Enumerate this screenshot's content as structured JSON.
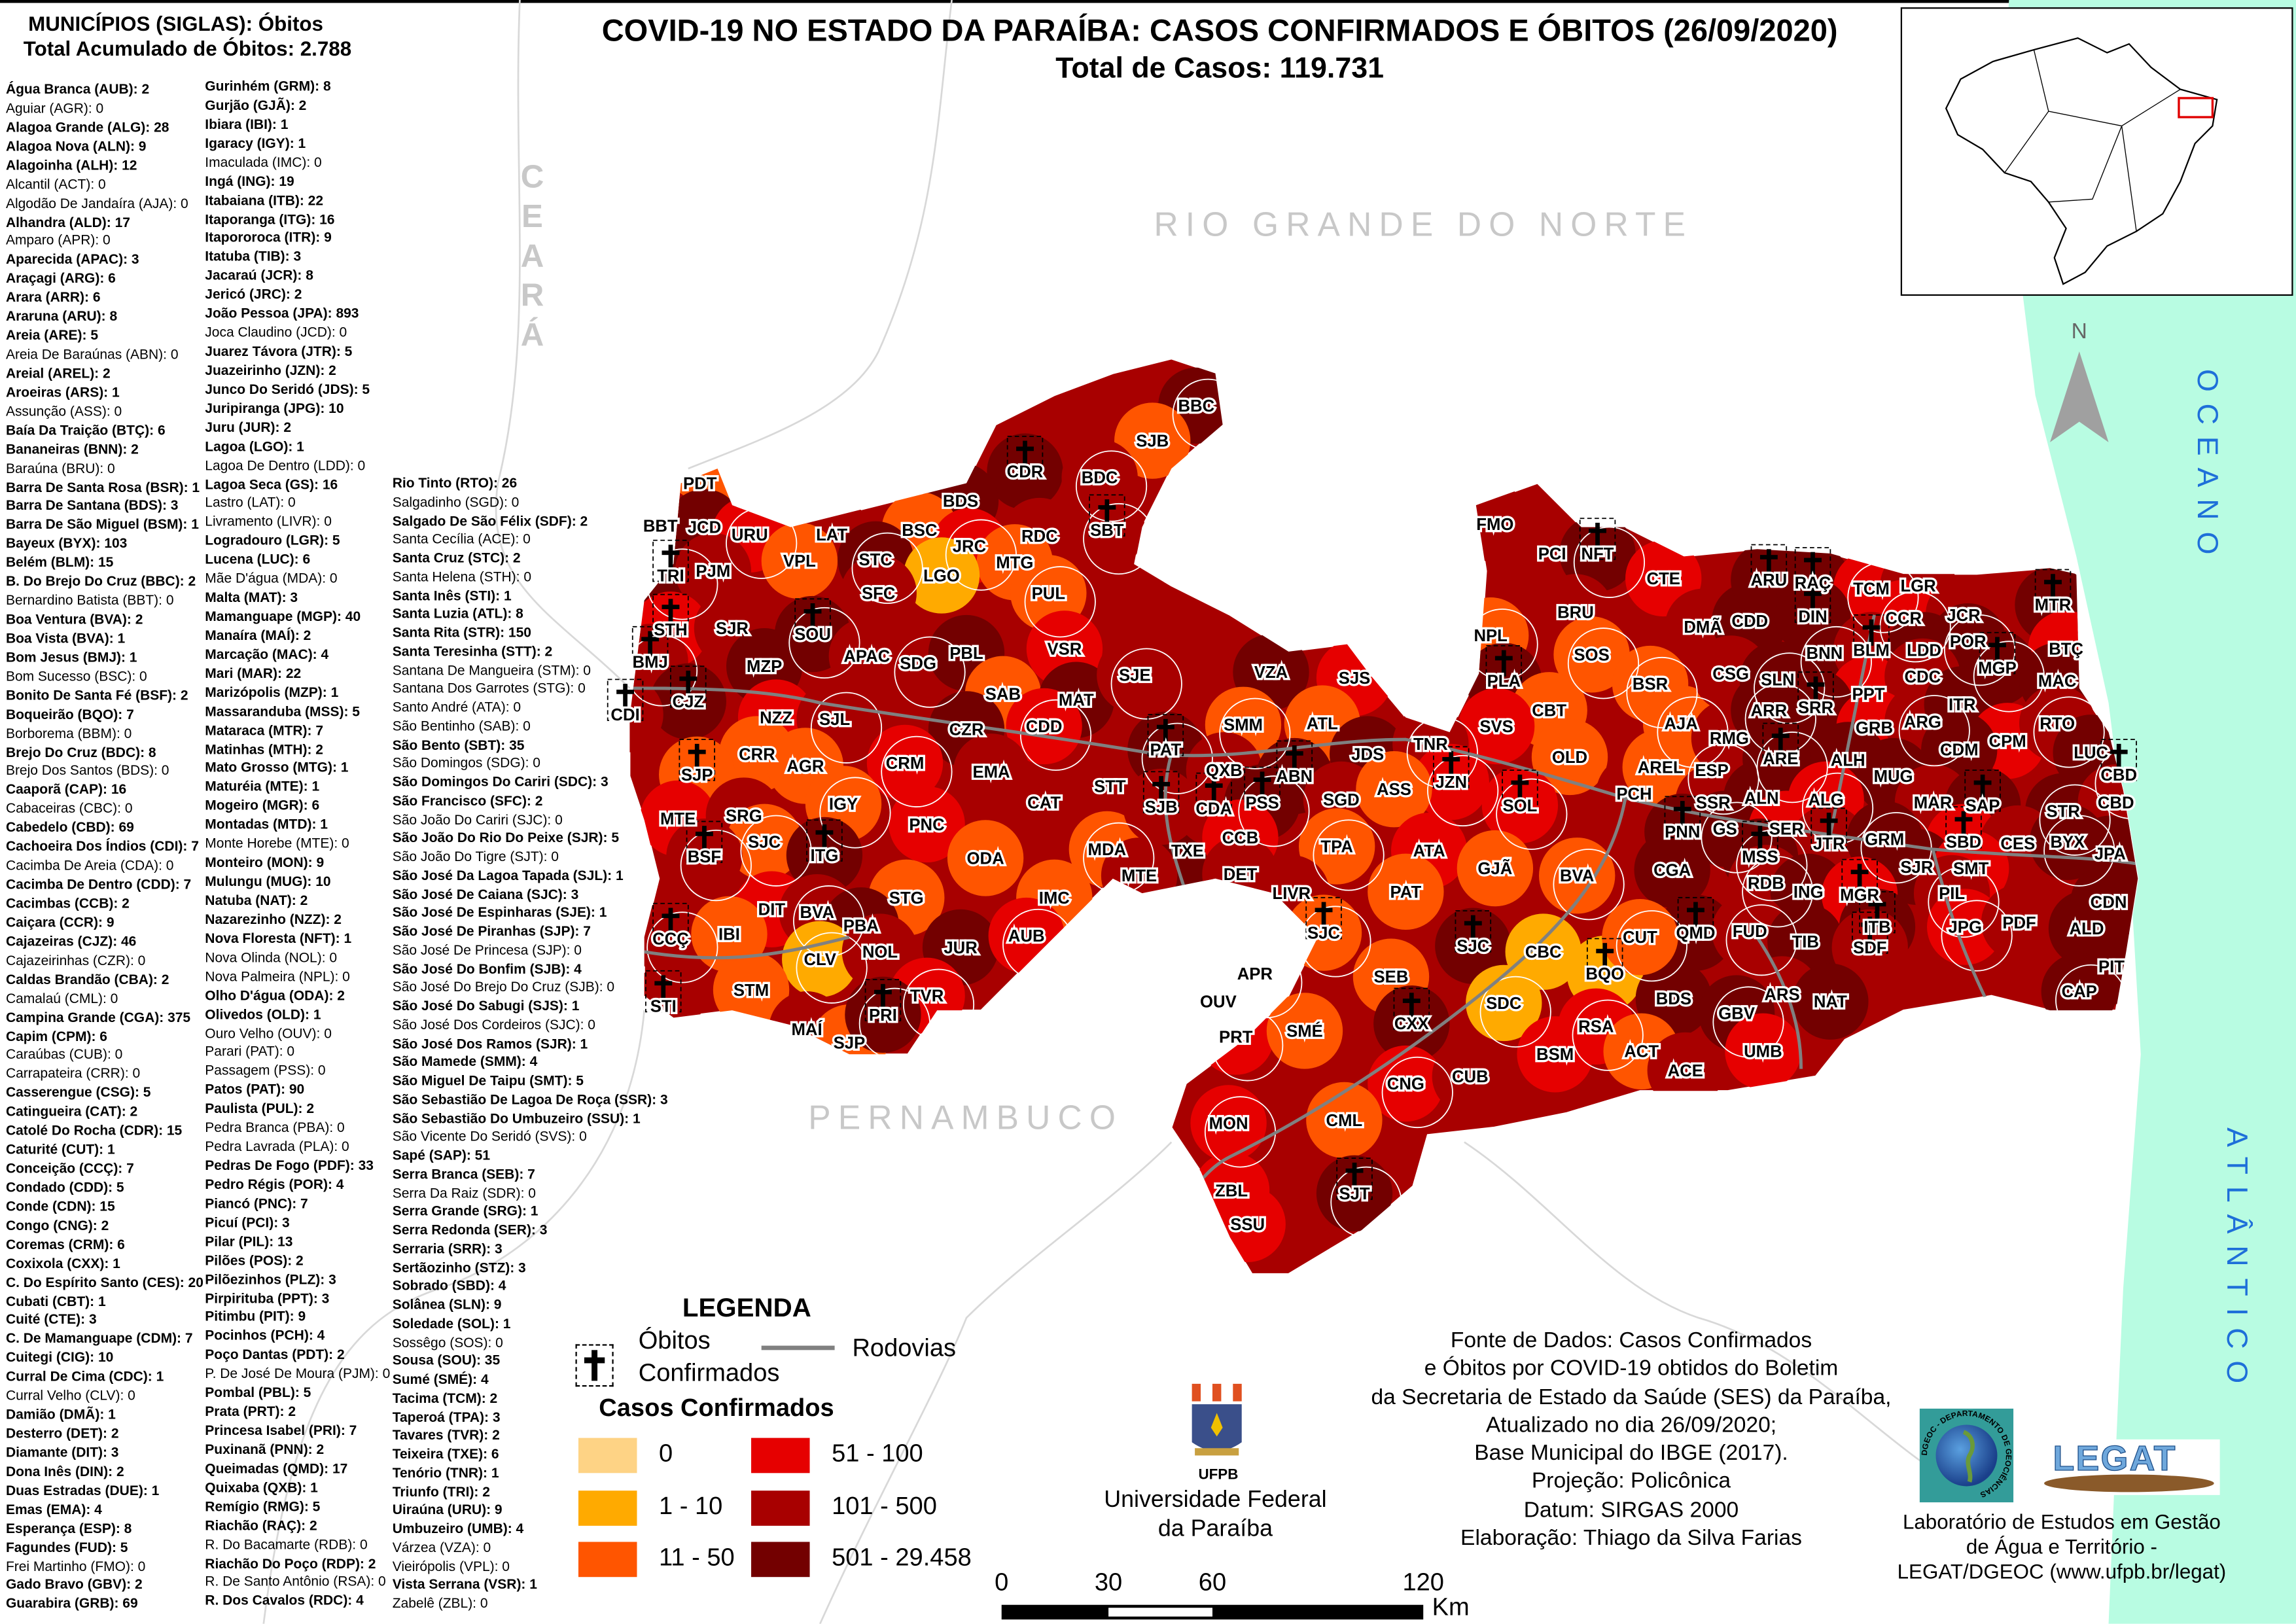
{
  "header": {
    "title": "COVID-19 NO ESTADO DA PARAÍBA: CASOS CONFIRMADOS E  ÓBITOS (26/09/2020)",
    "total_cases": "Total de Casos: 119.731",
    "list_title": "MUNICÍPIOS (SIGLAS): Óbitos",
    "list_total": "Total Acumulado de Óbitos: 2.788"
  },
  "municipalities": {
    "col1": [
      "Água Branca (AUB): 2",
      "Aguiar (AGR): 0",
      "Alagoa Grande (ALG): 28",
      "Alagoa Nova (ALN): 9",
      "Alagoinha (ALH): 12",
      "Alcantil (ACT): 0",
      "Algodão De Jandaíra (AJA): 0",
      "Alhandra (ALD): 17",
      "Amparo (APR): 0",
      "Aparecida (APAC): 3",
      "Araçagi (ARG): 6",
      "Arara (ARR): 6",
      "Araruna (ARU): 8",
      "Areia (ARE): 5",
      "Areia De Baraúnas (ABN): 0",
      "Areial (AREL): 2",
      "Aroeiras (ARS): 1",
      "Assunção (ASS): 0",
      "Baía Da Traição (BTÇ): 6",
      "Bananeiras (BNN): 2",
      "Baraúna (BRU): 0",
      "Barra De Santa Rosa (BSR): 1",
      "Barra De Santana (BDS): 3",
      "Barra De São Miguel (BSM): 1",
      "Bayeux (BYX): 103",
      "Belém (BLM): 15",
      "B. Do Brejo Do Cruz (BBC): 2",
      "Bernardino Batista (BBT): 0",
      "Boa Ventura (BVA): 2",
      "Boa Vista (BVA): 1",
      "Bom Jesus (BMJ): 1",
      "Bom Sucesso (BSC): 0",
      "Bonito De Santa Fé (BSF): 2",
      "Boqueirão (BQO): 7",
      "Borborema (BBM): 0",
      "Brejo Do Cruz (BDC): 8",
      "Brejo Dos Santos (BDS): 0",
      "Caaporã (CAP): 16",
      "Cabaceiras (CBC): 0",
      "Cabedelo (CBD): 69",
      "Cachoeira Dos Índios (CDI): 7",
      "Cacimba De Areia (CDA): 0",
      "Cacimba De Dentro (CDD): 7",
      "Cacimbas (CCB): 2",
      "Caiçara (CCR): 9",
      "Cajazeiras (CJZ): 46",
      "Cajazeirinhas (CZR): 0",
      "Caldas Brandão (CBA): 2",
      "Camalaú (CML): 0",
      "Campina Grande (CGA): 375",
      "Capim (CPM): 6",
      "Caraúbas (CUB): 0",
      "Carrapateira (CRR): 0",
      "Casserengue (CSG): 5",
      "Catingueira (CAT): 2",
      "Catolé Do Rocha (CDR): 15",
      "Caturité (CUT): 1",
      "Conceição (CCÇ): 7",
      "Condado (CDD): 5",
      "Conde (CDN): 15",
      "Congo (CNG): 2",
      "Coremas (CRM): 6",
      "Coxixola (CXX): 1",
      "C. Do Espírito Santo (CES): 20",
      "Cubati (CBT): 1",
      "Cuité (CTE): 3",
      "C. De Mamanguape (CDM): 7",
      "Cuitegi (CIG): 10",
      "Curral De Cima (CDC): 1",
      "Curral Velho (CLV): 0",
      "Damião (DMÃ): 1",
      "Desterro (DET): 2",
      "Diamante (DIT): 3",
      "Dona Inês (DIN): 2",
      "Duas Estradas (DUE): 1",
      "Emas (EMA): 4",
      "Esperança (ESP): 8",
      "Fagundes (FUD): 5",
      "Frei Martinho (FMO): 0",
      "Gado Bravo (GBV): 2",
      "Guarabira (GRB): 69"
    ],
    "col2": [
      "Gurinhém (GRM): 8",
      "Gurjão (GJÃ): 2",
      "Ibiara (IBI): 1",
      "Igaracy (IGY): 1",
      "Imaculada (IMC): 0",
      "Ingá (ING): 19",
      "Itabaiana (ITB): 22",
      "Itaporanga (ITG): 16",
      "Itapororoca (ITR): 9",
      "Itatuba (TIB): 3",
      "Jacaraú (JCR): 8",
      "Jericó (JRC): 2",
      "João Pessoa (JPA): 893",
      "Joca Claudino (JCD): 0",
      "Juarez Távora (JTR): 5",
      "Juazeirinho (JZN): 2",
      "Junco Do Seridó (JDS): 5",
      "Juripiranga (JPG): 10",
      "Juru (JUR): 2",
      "Lagoa (LGO): 1",
      "Lagoa De Dentro (LDD): 0",
      "Lagoa Seca (GS): 16",
      "Lastro (LAT): 0",
      "Livramento (LIVR): 0",
      "Logradouro (LGR): 5",
      "Lucena (LUC): 6",
      "Mãe D'água (MDA): 0",
      "Malta (MAT): 3",
      "Mamanguape (MGP): 40",
      "Manaíra (MAÍ): 2",
      "Marcação (MAC): 4",
      "Mari (MAR): 22",
      "Marizópolis (MZP): 1",
      "Massaranduba (MSS): 5",
      "Mataraca (MTR): 7",
      "Matinhas (MTH): 2",
      "Mato Grosso (MTG): 1",
      "Maturéia (MTE): 1",
      "Mogeiro (MGR): 6",
      "Montadas (MTD): 1",
      "Monte Horebe (MTE): 0",
      "Monteiro (MON): 9",
      "Mulungu (MUG): 10",
      "Natuba (NAT): 2",
      "Nazarezinho (NZZ): 2",
      "Nova Floresta (NFT): 1",
      "Nova Olinda (NOL): 0",
      "Nova Palmeira (NPL): 0",
      "Olho D'água (ODA): 2",
      "Olivedos (OLD): 1",
      "Ouro Velho (OUV): 0",
      "Parari (PAT): 0",
      "Passagem (PSS): 0",
      "Patos (PAT): 90",
      "Paulista (PUL): 2",
      "Pedra Branca (PBA): 0",
      "Pedra Lavrada (PLA): 0",
      "Pedras De Fogo (PDF): 33",
      "Pedro Régis (POR): 4",
      "Piancó (PNC): 7",
      "Picuí (PCI): 3",
      "Pilar (PIL): 13",
      "Pilões (POS): 2",
      "Pilõezinhos (PLZ): 3",
      "Pirpirituba (PPT): 3",
      "Pitimbu (PIT): 9",
      "Pocinhos (PCH): 4",
      "Poço Dantas (PDT): 2",
      "P. De José De Moura (PJM): 0",
      "Pombal (PBL): 5",
      "Prata (PRT): 2",
      "Princesa Isabel (PRI): 7",
      "Puxinanã (PNN): 2",
      "Queimadas (QMD): 17",
      "Quixaba (QXB): 1",
      "Remígio (RMG): 5",
      "Riachão (RAÇ): 2",
      "R. Do Bacamarte (RDB): 0",
      "Riachão Do Poço (RDP): 2",
      "R. De Santo Antônio (RSA): 0",
      "R. Dos Cavalos (RDC): 4"
    ],
    "col3": [
      "Rio Tinto (RTO): 26",
      "Salgadinho (SGD): 0",
      "Salgado De São Félix (SDF): 2",
      "Santa Cecília (ACE): 0",
      "Santa Cruz (STC): 2",
      "Santa Helena (STH): 0",
      "Santa Inês (STI): 1",
      "Santa Luzia (ATL): 8",
      "Santa Rita (STR): 150",
      "Santa Teresinha (STT): 2",
      "Santana De Mangueira (STM): 0",
      "Santana Dos Garrotes (STG): 0",
      "Santo André (ATA): 0",
      "São Bentinho (SAB): 0",
      "São Bento (SBT): 35",
      "São Domingos (SDG): 0",
      "São Domingos Do Cariri (SDC): 3",
      "São Francisco (SFC): 2",
      "São João Do Cariri (SJC): 0",
      "São João Do Rio Do Peixe (SJR): 5",
      "São João Do Tigre (SJT): 0",
      "São José Da Lagoa Tapada (SJL): 1",
      "São José De Caiana (SJC): 3",
      "São José De Espinharas (SJE): 1",
      "São José De Piranhas (SJP): 7",
      "São José De Princesa (SJP): 0",
      "São José Do Bonfim (SJB): 4",
      "São José Do Brejo Do Cruz (SJB): 0",
      "São José Do Sabugi (SJS): 1",
      "São José Dos Cordeiros (SJC): 0",
      "São José Dos Ramos (SJR): 1",
      "São Mamede (SMM): 4",
      "São Miguel De Taipu (SMT): 5",
      "São Sebastião De Lagoa De Roça (SSR): 3",
      "São Sebastião Do Umbuzeiro (SSU): 1",
      "São Vicente Do Seridó (SVS): 0",
      "Sapé (SAP): 51",
      "Serra Branca (SEB): 7",
      "Serra Da Raiz (SDR): 0",
      "Serra Grande (SRG): 1",
      "Serra Redonda (SER): 3",
      "Serraria (SRR): 3",
      "Sertãozinho (STZ): 3",
      "Sobrado (SBD): 4",
      "Solânea (SLN): 9",
      "Soledade (SOL): 1",
      "Sossêgo (SOS): 0",
      "Sousa (SOU): 35",
      "Sumé (SMÉ): 4",
      "Tacima (TCM): 2",
      "Taperoá (TPA): 3",
      "Tavares (TVR): 2",
      "Teixeira (TXE): 6",
      "Tenório (TNR): 1",
      "Triunfo (TRI): 2",
      "Uiraúna (URU): 9",
      "Umbuzeiro (UMB): 4",
      "Várzea (VZA): 0",
      "Vieirópolis (VPL): 0",
      "Vista Serrana (VSR): 1",
      "Zabelê (ZBL): 0"
    ]
  },
  "map": {
    "neighbors": {
      "ceara": "CEARÁ",
      "rn": "RIO GRANDE DO NORTE",
      "pe": "PERNAMBUCO",
      "ocean1": "OCEANO",
      "ocean2": "ATLÂNTICO"
    },
    "north_label": "N",
    "labels": [
      "BBC",
      "SJB",
      "CDR",
      "BDC",
      "PDT",
      "BDS",
      "SBT",
      "BBT",
      "JCD",
      "URU",
      "LAT",
      "BSC",
      "JRC",
      "RDC",
      "MTG",
      "TRI",
      "PJM",
      "VPL",
      "STC",
      "LGO",
      "SFC",
      "PUL",
      "STH",
      "SJR",
      "SOU",
      "MZP",
      "APAC",
      "SDG",
      "PBL",
      "VSR",
      "BMJ",
      "CJZ",
      "NZZ",
      "SJL",
      "SAB",
      "MAT",
      "SJE",
      "CDI",
      "CZR",
      "CDD",
      "CRR",
      "AGR",
      "CRM",
      "EMA",
      "SJP",
      "IGY",
      "CAT",
      "STT",
      "PAT",
      "MTE",
      "SRG",
      "SJC",
      "PNC",
      "ODA",
      "MDA",
      "TXE",
      "MTE",
      "BSF",
      "ITG",
      "DIT",
      "BVA",
      "STG",
      "IMC",
      "CCÇ",
      "IBI",
      "PBA",
      "CLV",
      "NOL",
      "JUR",
      "AUB",
      "STI",
      "STM",
      "TVR",
      "MAÍ",
      "SJP",
      "PRI",
      "FMO",
      "PCI",
      "NFT",
      "CTE",
      "BRU",
      "NPL",
      "DMÃ",
      "CDD",
      "SOS",
      "PLA",
      "CBT",
      "BSR",
      "VZA",
      "SJS",
      "SMM",
      "ATL",
      "SVS",
      "AJA",
      "OLD",
      "JDS",
      "TNR",
      "QXB",
      "ABN",
      "JZN",
      "SGD",
      "ASS",
      "SOL",
      "PCH",
      "AREL",
      "ESP",
      "SJB",
      "CDA",
      "PSS",
      "CCB",
      "DET",
      "TPA",
      "ATA",
      "GJÃ",
      "BVA",
      "PAT",
      "LIVR",
      "SJC",
      "SJC",
      "CBC",
      "APR",
      "SEB",
      "OUV",
      "PRT",
      "SMÉ",
      "CXX",
      "SDC",
      "BQO",
      "BDS",
      "RSA",
      "BSM",
      "ACT",
      "CNG",
      "CUB",
      "CML",
      "MON",
      "ZBL",
      "SSU",
      "SJT",
      "ARU",
      "RAÇ",
      "TCM",
      "LGR",
      "DIN",
      "CCR",
      "JCR",
      "MTR",
      "BNN",
      "BLM",
      "LDD",
      "POR",
      "BTÇ",
      "CSG",
      "SLN",
      "PPT",
      "CDC",
      "MGP",
      "MAC",
      "RMG",
      "ARR",
      "SRR",
      "GRB",
      "ARG",
      "ITR",
      "CPM",
      "RTO",
      "CDM",
      "LUC",
      "ARE",
      "ALH",
      "MUG",
      "CBD",
      "SSR",
      "ALN",
      "ALG",
      "MAR",
      "SAP",
      "STR",
      "CBD",
      "PNN",
      "GS",
      "SER",
      "JTR",
      "GRM",
      "SBD",
      "CES",
      "BYX",
      "JPA",
      "CGA",
      "MSS",
      "SJR",
      "SMT",
      "RDB",
      "ING",
      "MGR",
      "PIL",
      "CDN",
      "QMD",
      "FUD",
      "TIB",
      "ITB",
      "JPG",
      "PDF",
      "ALD",
      "CUT",
      "SDF",
      "PIT",
      "CAP",
      "ARS",
      "NAT",
      "GBV",
      "UMB",
      "ACE"
    ]
  },
  "legend": {
    "title": "LEGENDA",
    "deaths_line1": "Óbitos",
    "deaths_line2": "Confirmados",
    "roads": "Rodovias",
    "cases_title": "Casos Confirmados",
    "classes": [
      {
        "label": "0",
        "color": "#FED385"
      },
      {
        "label": "1 - 10",
        "color": "#FFAA00"
      },
      {
        "label": "11 - 50",
        "color": "#FF5500"
      },
      {
        "label": "51 - 100",
        "color": "#E60000"
      },
      {
        "label": "101 - 500",
        "color": "#A80000"
      },
      {
        "label": "501 - 29.458",
        "color": "#730000"
      }
    ]
  },
  "scale": {
    "ticks": [
      "0",
      "30",
      "60",
      "120"
    ],
    "unit": "Km"
  },
  "source": {
    "lines": [
      "Fonte de Dados: Casos Confirmados",
      "e Óbitos por COVID-19 obtidos do Boletim",
      "da Secretaria de Estado da Saúde (SES) da Paraíba,",
      "Atualizado no dia 26/09/2020;",
      "Base Municipal do IBGE (2017).",
      "Projeção: Policônica",
      "Datum: SIRGAS 2000",
      "Elaboração: Thiago da Silva Farias"
    ]
  },
  "ufpb": {
    "logo_text": "UFPB",
    "line1": "Universidade Federal",
    "line2": "da Paraíba"
  },
  "legat": {
    "logo_text": "LEGAT",
    "dgeoc_text": "DGEOC - DEPARTAMENTO DE GEOCIÊNCIAS",
    "lines": [
      "Laboratório de Estudos em Gestão",
      "de Água e Território -",
      "LEGAT/DGEOC (www.ufpb.br/legat)"
    ]
  },
  "colors": {
    "ocean": "#B8FCE2",
    "road": "#808080",
    "inset_highlight": "#E00000"
  }
}
